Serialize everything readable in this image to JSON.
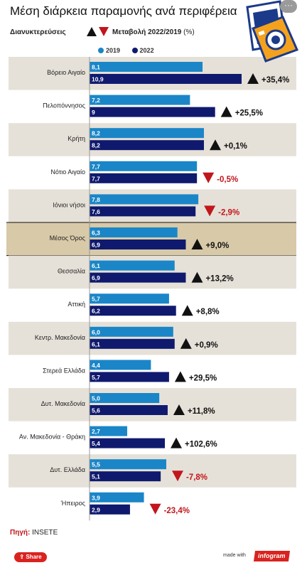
{
  "title": "Μέση διάρκεια παραμονής ανά περιφέρεια",
  "subtitle": {
    "left": "Διανυκτερεύσεις",
    "right_bold": "Μεταβολή 2022/2019",
    "right_unit": "(%)"
  },
  "legend": [
    {
      "name": "2019",
      "color": "#1a86c8"
    },
    {
      "name": "2022",
      "color": "#0f1a6e"
    }
  ],
  "chart_data": {
    "type": "bar",
    "orientation": "horizontal",
    "categories": [
      "Βόρειο Αιγαίο",
      "Πελοπόννησος",
      "Κρήτη",
      "Νότιο Αιγαίο",
      "Ιόνιοι νήσοι",
      "Μέσος Όρος",
      "Θεσσαλία",
      "Αττική",
      "Κεντρ. Μακεδονία",
      "Στερεά Ελλάδα",
      "Δυτ. Μακεδονία",
      "Αν. Μακεδονία - Θράκη",
      "Δυτ. Ελλάδα",
      "Ήπειρος"
    ],
    "series": [
      {
        "name": "2019",
        "color": "#1a86c8",
        "values": [
          8.1,
          7.2,
          8.2,
          7.7,
          7.8,
          6.3,
          6.1,
          5.7,
          6.0,
          4.4,
          5.0,
          2.7,
          5.5,
          3.9
        ]
      },
      {
        "name": "2022",
        "color": "#0f1a6e",
        "values": [
          10.9,
          9,
          8.2,
          7.7,
          7.6,
          6.9,
          6.9,
          6.2,
          6.1,
          5.7,
          5.6,
          5.4,
          5.1,
          2.9
        ]
      }
    ],
    "value_labels_2019": [
      "8,1",
      "7,2",
      "8,2",
      "7,7",
      "7,8",
      "6,3",
      "6,1",
      "5,7",
      "6,0",
      "4,4",
      "5,0",
      "2,7",
      "5,5",
      "3,9"
    ],
    "value_labels_2022": [
      "10,9",
      "9",
      "8,2",
      "7,7",
      "7,6",
      "6,9",
      "6,9",
      "6,2",
      "6,1",
      "5,7",
      "5,6",
      "5,4",
      "5,1",
      "2,9"
    ],
    "change": [
      35.4,
      25.5,
      0.1,
      -0.5,
      -2.9,
      9.0,
      13.2,
      8.8,
      0.9,
      29.5,
      11.8,
      102.6,
      -7.8,
      -23.4
    ],
    "change_labels": [
      "+35,4%",
      "+25,5%",
      "+0,1%",
      "-0,5%",
      "-2,9%",
      "+9,0%",
      "+13,2%",
      "+8,8%",
      "+0,9%",
      "+29,5%",
      "+11,8%",
      "+102,6%",
      "-7,8%",
      "-23,4%"
    ],
    "highlight_category": "Μέσος Όρος",
    "xlim": [
      0,
      14.2
    ],
    "up_color": "#111111",
    "down_color": "#c0161c",
    "band_color": "#e6e1d8",
    "highlight_color": "#d8c9a8"
  },
  "source": {
    "label": "Πηγή:",
    "value": "INSETE"
  },
  "footer": {
    "share": "Share",
    "made_with": "made with",
    "brand": "infogram"
  }
}
